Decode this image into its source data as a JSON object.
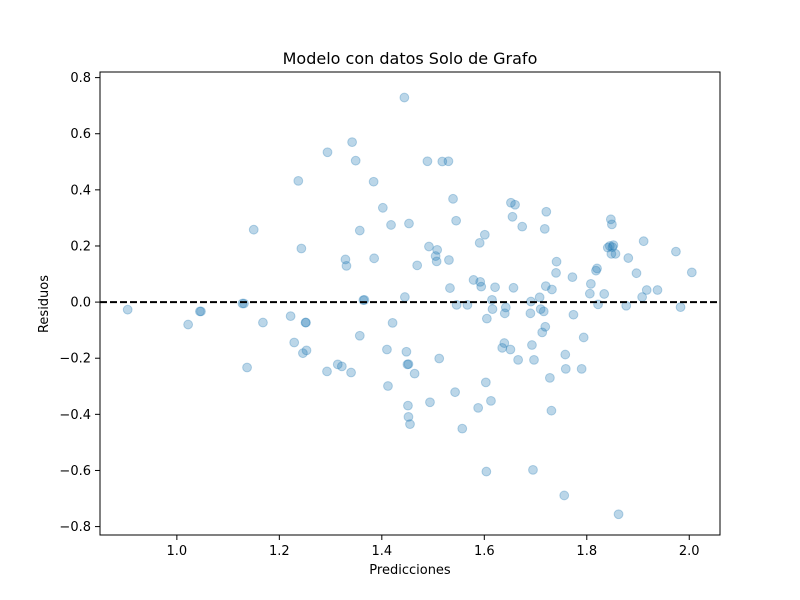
{
  "chart_data": {
    "type": "scatter",
    "title": "Modelo con datos Solo de Grafo",
    "xlabel": "Predicciones",
    "ylabel": "Residuos",
    "xlim": [
      0.85,
      2.06
    ],
    "ylim": [
      -0.83,
      0.82
    ],
    "xticks": [
      1.0,
      1.2,
      1.4,
      1.6,
      1.8,
      2.0
    ],
    "xtick_labels": [
      "1.0",
      "1.2",
      "1.4",
      "1.6",
      "1.8",
      "2.0"
    ],
    "yticks": [
      -0.8,
      -0.6,
      -0.4,
      -0.2,
      0.0,
      0.2,
      0.4,
      0.6,
      0.8
    ],
    "ytick_labels": [
      "−0.8",
      "−0.6",
      "−0.4",
      "−0.2",
      "0.0",
      "0.2",
      "0.4",
      "0.6",
      "0.8"
    ],
    "reference_line": {
      "y": 0.0,
      "style": "dashed",
      "color": "#000000"
    },
    "grid": false,
    "marker_color": "#1f77b4",
    "marker_alpha": 0.3,
    "points": [
      [
        0.904,
        -0.027
      ],
      [
        1.022,
        -0.08
      ],
      [
        1.045,
        -0.033
      ],
      [
        1.047,
        -0.033
      ],
      [
        1.128,
        -0.005
      ],
      [
        1.131,
        -0.005
      ],
      [
        1.137,
        -0.233
      ],
      [
        1.15,
        0.258
      ],
      [
        1.168,
        -0.073
      ],
      [
        1.222,
        -0.05
      ],
      [
        1.229,
        -0.144
      ],
      [
        1.237,
        0.432
      ],
      [
        1.243,
        0.191
      ],
      [
        1.246,
        -0.182
      ],
      [
        1.251,
        -0.073
      ],
      [
        1.252,
        -0.073
      ],
      [
        1.253,
        -0.172
      ],
      [
        1.293,
        -0.247
      ],
      [
        1.294,
        0.534
      ],
      [
        1.314,
        -0.222
      ],
      [
        1.322,
        -0.229
      ],
      [
        1.329,
        0.152
      ],
      [
        1.331,
        0.129
      ],
      [
        1.34,
        -0.251
      ],
      [
        1.342,
        0.57
      ],
      [
        1.349,
        0.504
      ],
      [
        1.357,
        0.255
      ],
      [
        1.357,
        -0.12
      ],
      [
        1.364,
        0.007
      ],
      [
        1.366,
        0.008
      ],
      [
        1.384,
        0.429
      ],
      [
        1.385,
        0.156
      ],
      [
        1.402,
        0.336
      ],
      [
        1.41,
        -0.169
      ],
      [
        1.412,
        -0.299
      ],
      [
        1.418,
        0.275
      ],
      [
        1.421,
        -0.074
      ],
      [
        1.444,
        0.729
      ],
      [
        1.445,
        0.018
      ],
      [
        1.448,
        -0.177
      ],
      [
        1.45,
        -0.222
      ],
      [
        1.451,
        -0.369
      ],
      [
        1.452,
        -0.221
      ],
      [
        1.452,
        -0.409
      ],
      [
        1.453,
        0.28
      ],
      [
        1.455,
        -0.435
      ],
      [
        1.464,
        -0.255
      ],
      [
        1.469,
        0.131
      ],
      [
        1.489,
        0.502
      ],
      [
        1.492,
        0.198
      ],
      [
        1.494,
        -0.357
      ],
      [
        1.505,
        0.164
      ],
      [
        1.507,
        0.145
      ],
      [
        1.508,
        0.186
      ],
      [
        1.512,
        -0.201
      ],
      [
        1.518,
        0.501
      ],
      [
        1.53,
        0.502
      ],
      [
        1.531,
        0.15
      ],
      [
        1.533,
        0.05
      ],
      [
        1.539,
        0.368
      ],
      [
        1.543,
        -0.321
      ],
      [
        1.545,
        0.29
      ],
      [
        1.546,
        -0.01
      ],
      [
        1.557,
        -0.451
      ],
      [
        1.567,
        -0.01
      ],
      [
        1.579,
        0.079
      ],
      [
        1.588,
        -0.377
      ],
      [
        1.591,
        0.211
      ],
      [
        1.592,
        0.072
      ],
      [
        1.594,
        0.055
      ],
      [
        1.601,
        0.24
      ],
      [
        1.603,
        -0.286
      ],
      [
        1.604,
        -0.604
      ],
      [
        1.605,
        -0.059
      ],
      [
        1.613,
        -0.352
      ],
      [
        1.615,
        0.008
      ],
      [
        1.616,
        -0.025
      ],
      [
        1.621,
        0.053
      ],
      [
        1.635,
        -0.163
      ],
      [
        1.639,
        -0.146
      ],
      [
        1.64,
        -0.04
      ],
      [
        1.642,
        -0.019
      ],
      [
        1.651,
        -0.169
      ],
      [
        1.652,
        0.354
      ],
      [
        1.655,
        0.304
      ],
      [
        1.657,
        0.051
      ],
      [
        1.66,
        0.347
      ],
      [
        1.666,
        -0.206
      ],
      [
        1.674,
        0.269
      ],
      [
        1.69,
        -0.04
      ],
      [
        1.691,
        0.002
      ],
      [
        1.693,
        -0.153
      ],
      [
        1.695,
        -0.598
      ],
      [
        1.697,
        -0.206
      ],
      [
        1.708,
        0.017
      ],
      [
        1.71,
        -0.025
      ],
      [
        1.713,
        -0.108
      ],
      [
        1.716,
        -0.033
      ],
      [
        1.718,
        0.261
      ],
      [
        1.719,
        -0.088
      ],
      [
        1.72,
        0.057
      ],
      [
        1.721,
        0.322
      ],
      [
        1.728,
        -0.27
      ],
      [
        1.731,
        -0.387
      ],
      [
        1.732,
        0.045
      ],
      [
        1.74,
        0.104
      ],
      [
        1.741,
        0.144
      ],
      [
        1.756,
        -0.689
      ],
      [
        1.758,
        -0.187
      ],
      [
        1.759,
        -0.238
      ],
      [
        1.772,
        0.089
      ],
      [
        1.774,
        -0.045
      ],
      [
        1.79,
        -0.238
      ],
      [
        1.794,
        -0.126
      ],
      [
        1.806,
        0.03
      ],
      [
        1.808,
        0.065
      ],
      [
        1.818,
        0.112
      ],
      [
        1.82,
        0.12
      ],
      [
        1.822,
        -0.008
      ],
      [
        1.834,
        0.029
      ],
      [
        1.841,
        0.194
      ],
      [
        1.845,
        0.2
      ],
      [
        1.847,
        0.295
      ],
      [
        1.848,
        0.172
      ],
      [
        1.849,
        0.277
      ],
      [
        1.85,
        0.196
      ],
      [
        1.852,
        0.203
      ],
      [
        1.856,
        0.172
      ],
      [
        1.862,
        -0.756
      ],
      [
        1.877,
        -0.013
      ],
      [
        1.881,
        0.157
      ],
      [
        1.897,
        0.103
      ],
      [
        1.908,
        0.018
      ],
      [
        1.911,
        0.217
      ],
      [
        1.917,
        0.043
      ],
      [
        1.938,
        0.043
      ],
      [
        1.974,
        0.18
      ],
      [
        1.983,
        -0.018
      ],
      [
        2.005,
        0.106
      ]
    ]
  }
}
